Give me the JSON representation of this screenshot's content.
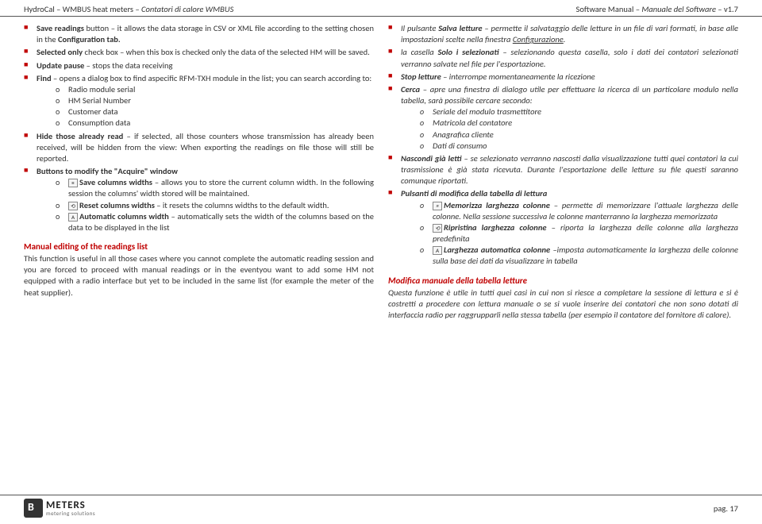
{
  "header": {
    "left_en": "HydroCal – WMBUS heat meters",
    "left_it": "– Contatori di calore WMBUS",
    "right_en": "Software Manual",
    "right_it": "– Manuale del Software",
    "version": " – v1.7"
  },
  "left_col": {
    "items": [
      {
        "pre_b": "Save readings",
        "post": " button – it allows the data storage in CSV or XML file according to the setting chosen in the ",
        "post_b": "Configuration tab.",
        "tail": ""
      },
      {
        "pre_b": "Selected only",
        "post": " check box – when this box is checked only the data of the selected HM will be saved."
      },
      {
        "pre_b": "Update pause",
        "post": " – stops the data receiving"
      },
      {
        "pre_b": "Find",
        "post": " – opens a dialog box to find aspecific RFM-TXH module in the list; you can search according to:",
        "sub": [
          "Radio module serial",
          "HM Serial Number",
          "Customer data",
          "Consumption data"
        ]
      },
      {
        "pre_b": "Hide those already read",
        "post": " – if selected, all those counters whose transmission has already been received, will be hidden from the view: When exporting the readings on file those will still be reported."
      },
      {
        "pre_b": "Buttons to modify the \"Acquire\" window",
        "post": "",
        "sub_icon": [
          {
            "icon": "≡",
            "b": "Save columns widths",
            "t": " – allows you to store the current column width. In the following session the columns' width stored will be maintained."
          },
          {
            "icon": "⟲",
            "b": "Reset columns widths",
            "t": " – it resets the columns widths to the default width."
          },
          {
            "icon": "A",
            "b": "Automatic columns width",
            "t": "  – automatically sets the width of the columns based on the data to be displayed in the list"
          }
        ]
      }
    ],
    "section_heading": "Manual editing of the readings list",
    "section_para": "This function is useful in all those cases where you cannot complete the automatic reading session and you are forced to proceed with manual readings or in the eventyou want to add some HM not equipped with a radio interface but yet to be included in the same list (for example the meter of the heat supplier)."
  },
  "right_col": {
    "items": [
      {
        "pre": "Il pulsante ",
        "b1": "Salva letture",
        "mid": " – permette il salvataggio delle letture in un file di vari formati, in base alle impostazioni scelte nella finestra ",
        "u": "Configurazione",
        "tail": "."
      },
      {
        "pre": "la casella ",
        "b1": "Solo i selezionati",
        "mid": " – selezionando questa casella, solo i dati dei contatori selezionati verranno salvate nel file per l'esportazione."
      },
      {
        "b1": "Stop letture",
        "mid": " – interrompe momentaneamente la ricezione"
      },
      {
        "b1": "Cerca",
        "mid": " – apre una finestra di dialogo utile per effettuare la ricerca di un particolare modulo nella tabella, sarà possibile cercare secondo:",
        "sub": [
          "Seriale del modulo trasmettitore",
          "Matricola del contatore",
          "Anagrafica cliente",
          "Dati di consumo"
        ]
      },
      {
        "b1": "Nascondi già letti",
        "mid": " – se selezionato verranno nascosti dalla visualizzazione tutti quei contatori la cui trasmissione è già stata ricevuta. Durante l'esportazione delle letture su file questi saranno comunque riportati."
      },
      {
        "b1": "Pulsanti di modifica della tabella di lettura",
        "mid": "",
        "sub_icon": [
          {
            "icon": "≡",
            "b": "Memorizza larghezza colonne",
            "t": " – permette di memorizzare l'attuale larghezza delle colonne.  Nella sessione successiva le colonne manterranno la larghezza memorizzata"
          },
          {
            "icon": "⟲",
            "b": "Ripristina larghezza colonne",
            "t": " – riporta la larghezza delle colonne alla larghezza predefinita"
          },
          {
            "icon": "A",
            "b": "Larghezza automatica colonne",
            "t": " –imposta automaticamente la larghezza delle colonne sulla base dei dati da visualizzare in tabella"
          }
        ]
      }
    ],
    "section_heading": "Modifica manuale della tabella letture",
    "section_para": "Questa funzione è utile in tutti quei casi in cui non si riesce a completare la sessione di lettura e si è costretti a procedere con lettura manuale o se si vuole inserire dei contatori che non sono dotati di interfaccia radio per raggrupparli nella stessa tabella (per esempio il contatore del fornitore di calore)."
  },
  "footer": {
    "logo_name": "METERS",
    "logo_tag": "metering solutions",
    "page": "pag. 17"
  },
  "colors": {
    "accent": "#c00000",
    "text": "#333333",
    "border": "#555555"
  }
}
